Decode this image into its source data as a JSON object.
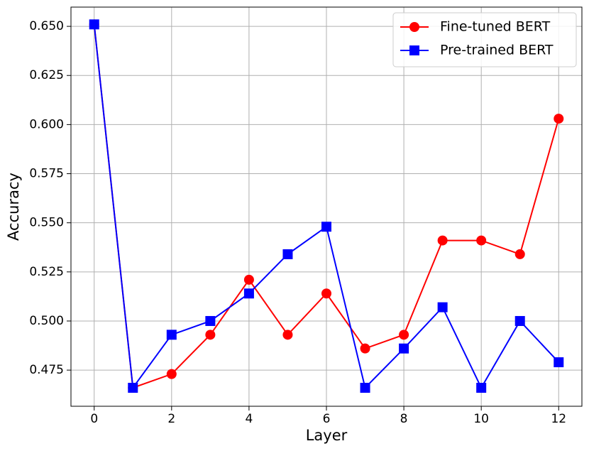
{
  "chart_data": {
    "type": "line",
    "xlabel": "Layer",
    "ylabel": "Accuracy",
    "x": [
      0,
      1,
      2,
      3,
      4,
      5,
      6,
      7,
      8,
      9,
      10,
      11,
      12
    ],
    "series": [
      {
        "name": "Fine-tuned BERT",
        "color": "#ff0000",
        "marker": "circle",
        "values": [
          0.651,
          0.466,
          0.473,
          0.493,
          0.521,
          0.493,
          0.514,
          0.486,
          0.493,
          0.541,
          0.541,
          0.534,
          0.603
        ]
      },
      {
        "name": "Pre-trained BERT",
        "color": "#0000ff",
        "marker": "square",
        "values": [
          0.651,
          0.466,
          0.493,
          0.5,
          0.514,
          0.534,
          0.548,
          0.466,
          0.486,
          0.507,
          0.466,
          0.5,
          0.479
        ]
      }
    ],
    "xlim": [
      -0.6,
      12.6
    ],
    "xticks": [
      0,
      2,
      4,
      6,
      8,
      10,
      12
    ],
    "ylim": [
      0.4566,
      0.6598
    ],
    "yticks": [
      0.475,
      {
        "value": 0.5,
        "label": "0.500"
      },
      0.525,
      {
        "value": 0.55,
        "label": "0.550"
      },
      0.575,
      {
        "value": 0.6,
        "label": "0.600"
      },
      0.625,
      {
        "value": 0.65,
        "label": "0.650"
      }
    ],
    "grid": true,
    "legend": "upper right"
  }
}
